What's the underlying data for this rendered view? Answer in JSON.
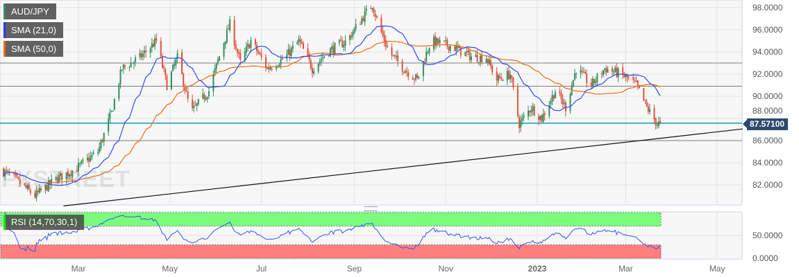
{
  "legend": {
    "symbol": {
      "label": "AUD/JPY",
      "color": "#3a8a6e"
    },
    "sma21": {
      "label": "SMA (21,0)",
      "color": "#1f3cff"
    },
    "sma50": {
      "label": "SMA (50,0)",
      "color": "#f06a10"
    },
    "rsi": {
      "label": "RSI (14,70,30,1)",
      "color": "#1fe01f"
    }
  },
  "watermark": "FXSTREET",
  "current_price": "87.57100",
  "colors": {
    "up": "#2f8f5a",
    "down": "#e0503a",
    "sma21": "#2b4cf0",
    "sma50": "#f06a10",
    "rsi": "#3355ee",
    "current_line": "#0aa0b0",
    "rsi_overbought": "#7cfc7c",
    "rsi_oversold": "#ff7f7f"
  },
  "chart_data": {
    "type": "candlestick",
    "y_axis": {
      "ticks": [
        "82.0000",
        "84.0000",
        "86.0000",
        "88.0000",
        "90.0000",
        "92.0000",
        "94.0000",
        "96.0000",
        "98.0000"
      ],
      "range": [
        80.0,
        98.7
      ]
    },
    "x_axis": {
      "ticks": [
        {
          "label": "Mar",
          "date": "2022-03-01"
        },
        {
          "label": "May",
          "date": "2022-05-01"
        },
        {
          "label": "Jul",
          "date": "2022-07-01"
        },
        {
          "label": "Sep",
          "date": "2022-09-01"
        },
        {
          "label": "Nov",
          "date": "2022-11-01"
        },
        {
          "label": "2023",
          "date": "2023-01-01"
        },
        {
          "label": "Mar",
          "date": "2023-03-01"
        },
        {
          "label": "May",
          "date": "2023-05-01"
        }
      ],
      "range": [
        "2022-01-08",
        "2023-05-28"
      ]
    },
    "price_path": [
      [
        "2022-01-08",
        83.4
      ],
      [
        "2022-01-17",
        82.6
      ],
      [
        "2022-01-31",
        81.0
      ],
      [
        "2022-02-14",
        82.5
      ],
      [
        "2022-02-28",
        83.5
      ],
      [
        "2022-03-14",
        85.0
      ],
      [
        "2022-03-23",
        88.5
      ],
      [
        "2022-03-30",
        92.5
      ],
      [
        "2022-04-11",
        93.5
      ],
      [
        "2022-04-22",
        95.0
      ],
      [
        "2022-04-29",
        91.0
      ],
      [
        "2022-05-06",
        93.5
      ],
      [
        "2022-05-15",
        88.5
      ],
      [
        "2022-05-27",
        90.5
      ],
      [
        "2022-06-05",
        94.5
      ],
      [
        "2022-06-10",
        96.5
      ],
      [
        "2022-06-17",
        93.0
      ],
      [
        "2022-06-24",
        95.0
      ],
      [
        "2022-07-05",
        92.5
      ],
      [
        "2022-07-17",
        93.5
      ],
      [
        "2022-07-26",
        95.0
      ],
      [
        "2022-08-04",
        92.5
      ],
      [
        "2022-08-14",
        94.0
      ],
      [
        "2022-08-27",
        95.0
      ],
      [
        "2022-09-06",
        97.0
      ],
      [
        "2022-09-13",
        98.3
      ],
      [
        "2022-09-17",
        96.5
      ],
      [
        "2022-09-24",
        94.0
      ],
      [
        "2022-10-04",
        92.5
      ],
      [
        "2022-10-13",
        91.5
      ],
      [
        "2022-10-22",
        95.0
      ],
      [
        "2022-11-05",
        94.5
      ],
      [
        "2022-11-19",
        93.5
      ],
      [
        "2022-11-28",
        93.5
      ],
      [
        "2022-12-05",
        91.5
      ],
      [
        "2022-12-14",
        92.0
      ],
      [
        "2022-12-20",
        87.5
      ],
      [
        "2022-12-28",
        89.0
      ],
      [
        "2023-01-04",
        88.0
      ],
      [
        "2023-01-13",
        90.5
      ],
      [
        "2023-01-20",
        89.0
      ],
      [
        "2023-01-27",
        92.5
      ],
      [
        "2023-02-06",
        91.0
      ],
      [
        "2023-02-15",
        92.5
      ],
      [
        "2023-02-26",
        92.0
      ],
      [
        "2023-03-08",
        91.0
      ],
      [
        "2023-03-15",
        89.0
      ],
      [
        "2023-03-22",
        87.5
      ],
      [
        "2023-03-26",
        87.57
      ]
    ],
    "horizontal_lines": [
      93.0,
      90.9,
      87.571,
      86.0
    ],
    "trendline": [
      [
        "2022-02-19",
        80.1
      ],
      [
        "2023-05-18",
        87.05
      ]
    ],
    "indicators": [
      "SMA 21",
      "SMA 50",
      "RSI 14"
    ],
    "rsi_axis": {
      "ticks": [
        "0.0000",
        "50.0000"
      ],
      "overbought": 70,
      "oversold": 30,
      "range": [
        0,
        100
      ]
    },
    "grid": true
  }
}
